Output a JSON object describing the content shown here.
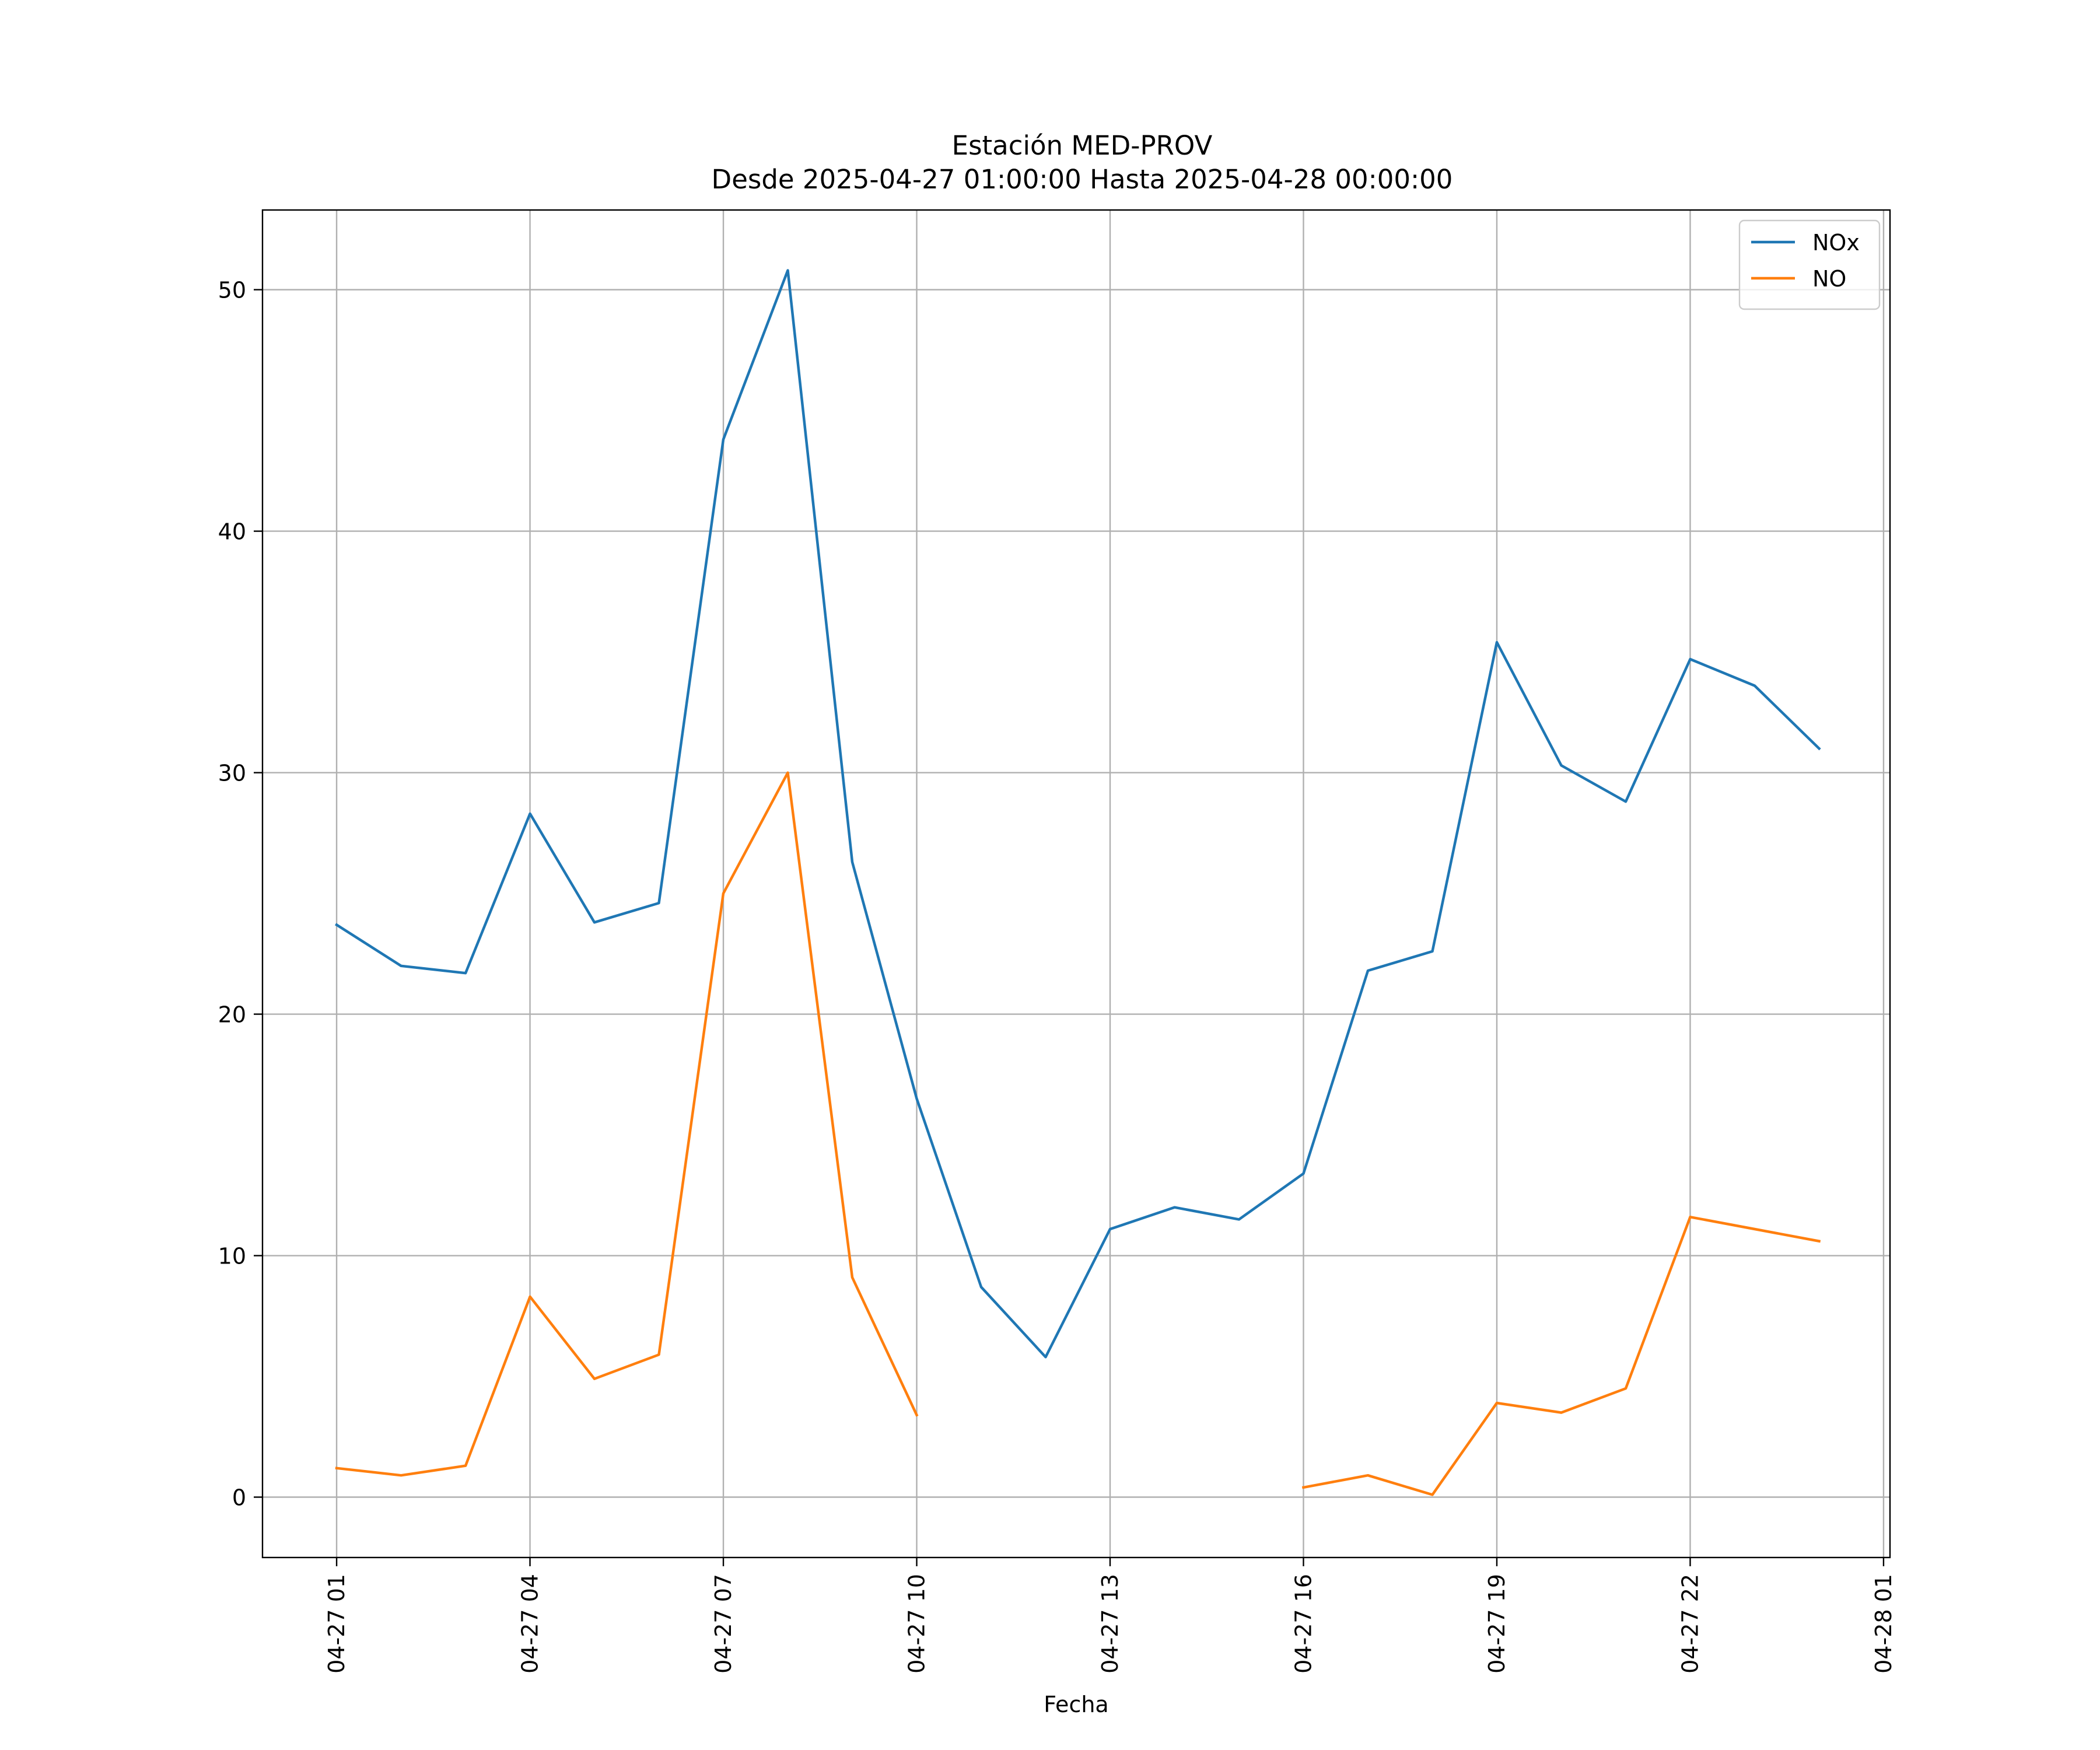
{
  "chart_data": {
    "type": "line",
    "title": "Estación MED-PROV",
    "subtitle": "Desde 2025-04-27 01:00:00 Hasta 2025-04-28 00:00:00",
    "xlabel": "Fecha",
    "ylabel": "",
    "x": [
      "2025-04-27 01:00",
      "2025-04-27 02:00",
      "2025-04-27 03:00",
      "2025-04-27 04:00",
      "2025-04-27 05:00",
      "2025-04-27 06:00",
      "2025-04-27 07:00",
      "2025-04-27 08:00",
      "2025-04-27 09:00",
      "2025-04-27 10:00",
      "2025-04-27 11:00",
      "2025-04-27 12:00",
      "2025-04-27 13:00",
      "2025-04-27 14:00",
      "2025-04-27 15:00",
      "2025-04-27 16:00",
      "2025-04-27 17:00",
      "2025-04-27 18:00",
      "2025-04-27 19:00",
      "2025-04-27 20:00",
      "2025-04-27 21:00",
      "2025-04-27 22:00",
      "2025-04-27 23:00",
      "2025-04-28 00:00"
    ],
    "xlim": [
      "2025-04-26 23:51",
      "2025-04-28 01:06"
    ],
    "ylim": [
      -2.5,
      53.3
    ],
    "x_ticks": [
      "2025-04-27 01:00",
      "2025-04-27 04:00",
      "2025-04-27 07:00",
      "2025-04-27 10:00",
      "2025-04-27 13:00",
      "2025-04-27 16:00",
      "2025-04-27 19:00",
      "2025-04-27 22:00",
      "2025-04-28 01:00"
    ],
    "x_tick_labels": [
      "04-27 01",
      "04-27 04",
      "04-27 07",
      "04-27 10",
      "04-27 13",
      "04-27 16",
      "04-27 19",
      "04-27 22",
      "04-28 01"
    ],
    "y_ticks": [
      0,
      10,
      20,
      30,
      40,
      50
    ],
    "y_tick_labels": [
      "0",
      "10",
      "20",
      "30",
      "40",
      "50"
    ],
    "grid": true,
    "legend_position": "top-right",
    "series": [
      {
        "name": "NOx",
        "color": "#1f77b4",
        "values": [
          23.7,
          22.0,
          21.7,
          28.3,
          23.8,
          24.6,
          43.8,
          50.8,
          26.3,
          16.5,
          8.7,
          5.8,
          11.1,
          12.0,
          11.5,
          13.4,
          21.8,
          22.6,
          35.4,
          30.3,
          28.8,
          34.7,
          33.6,
          31.0
        ]
      },
      {
        "name": "NO",
        "color": "#ff7f0e",
        "values": [
          1.2,
          0.9,
          1.3,
          8.3,
          4.9,
          5.9,
          25.0,
          30.0,
          9.1,
          3.4,
          null,
          null,
          null,
          null,
          null,
          0.4,
          0.9,
          0.1,
          3.9,
          3.5,
          4.5,
          11.6,
          11.1,
          10.6
        ]
      }
    ]
  }
}
